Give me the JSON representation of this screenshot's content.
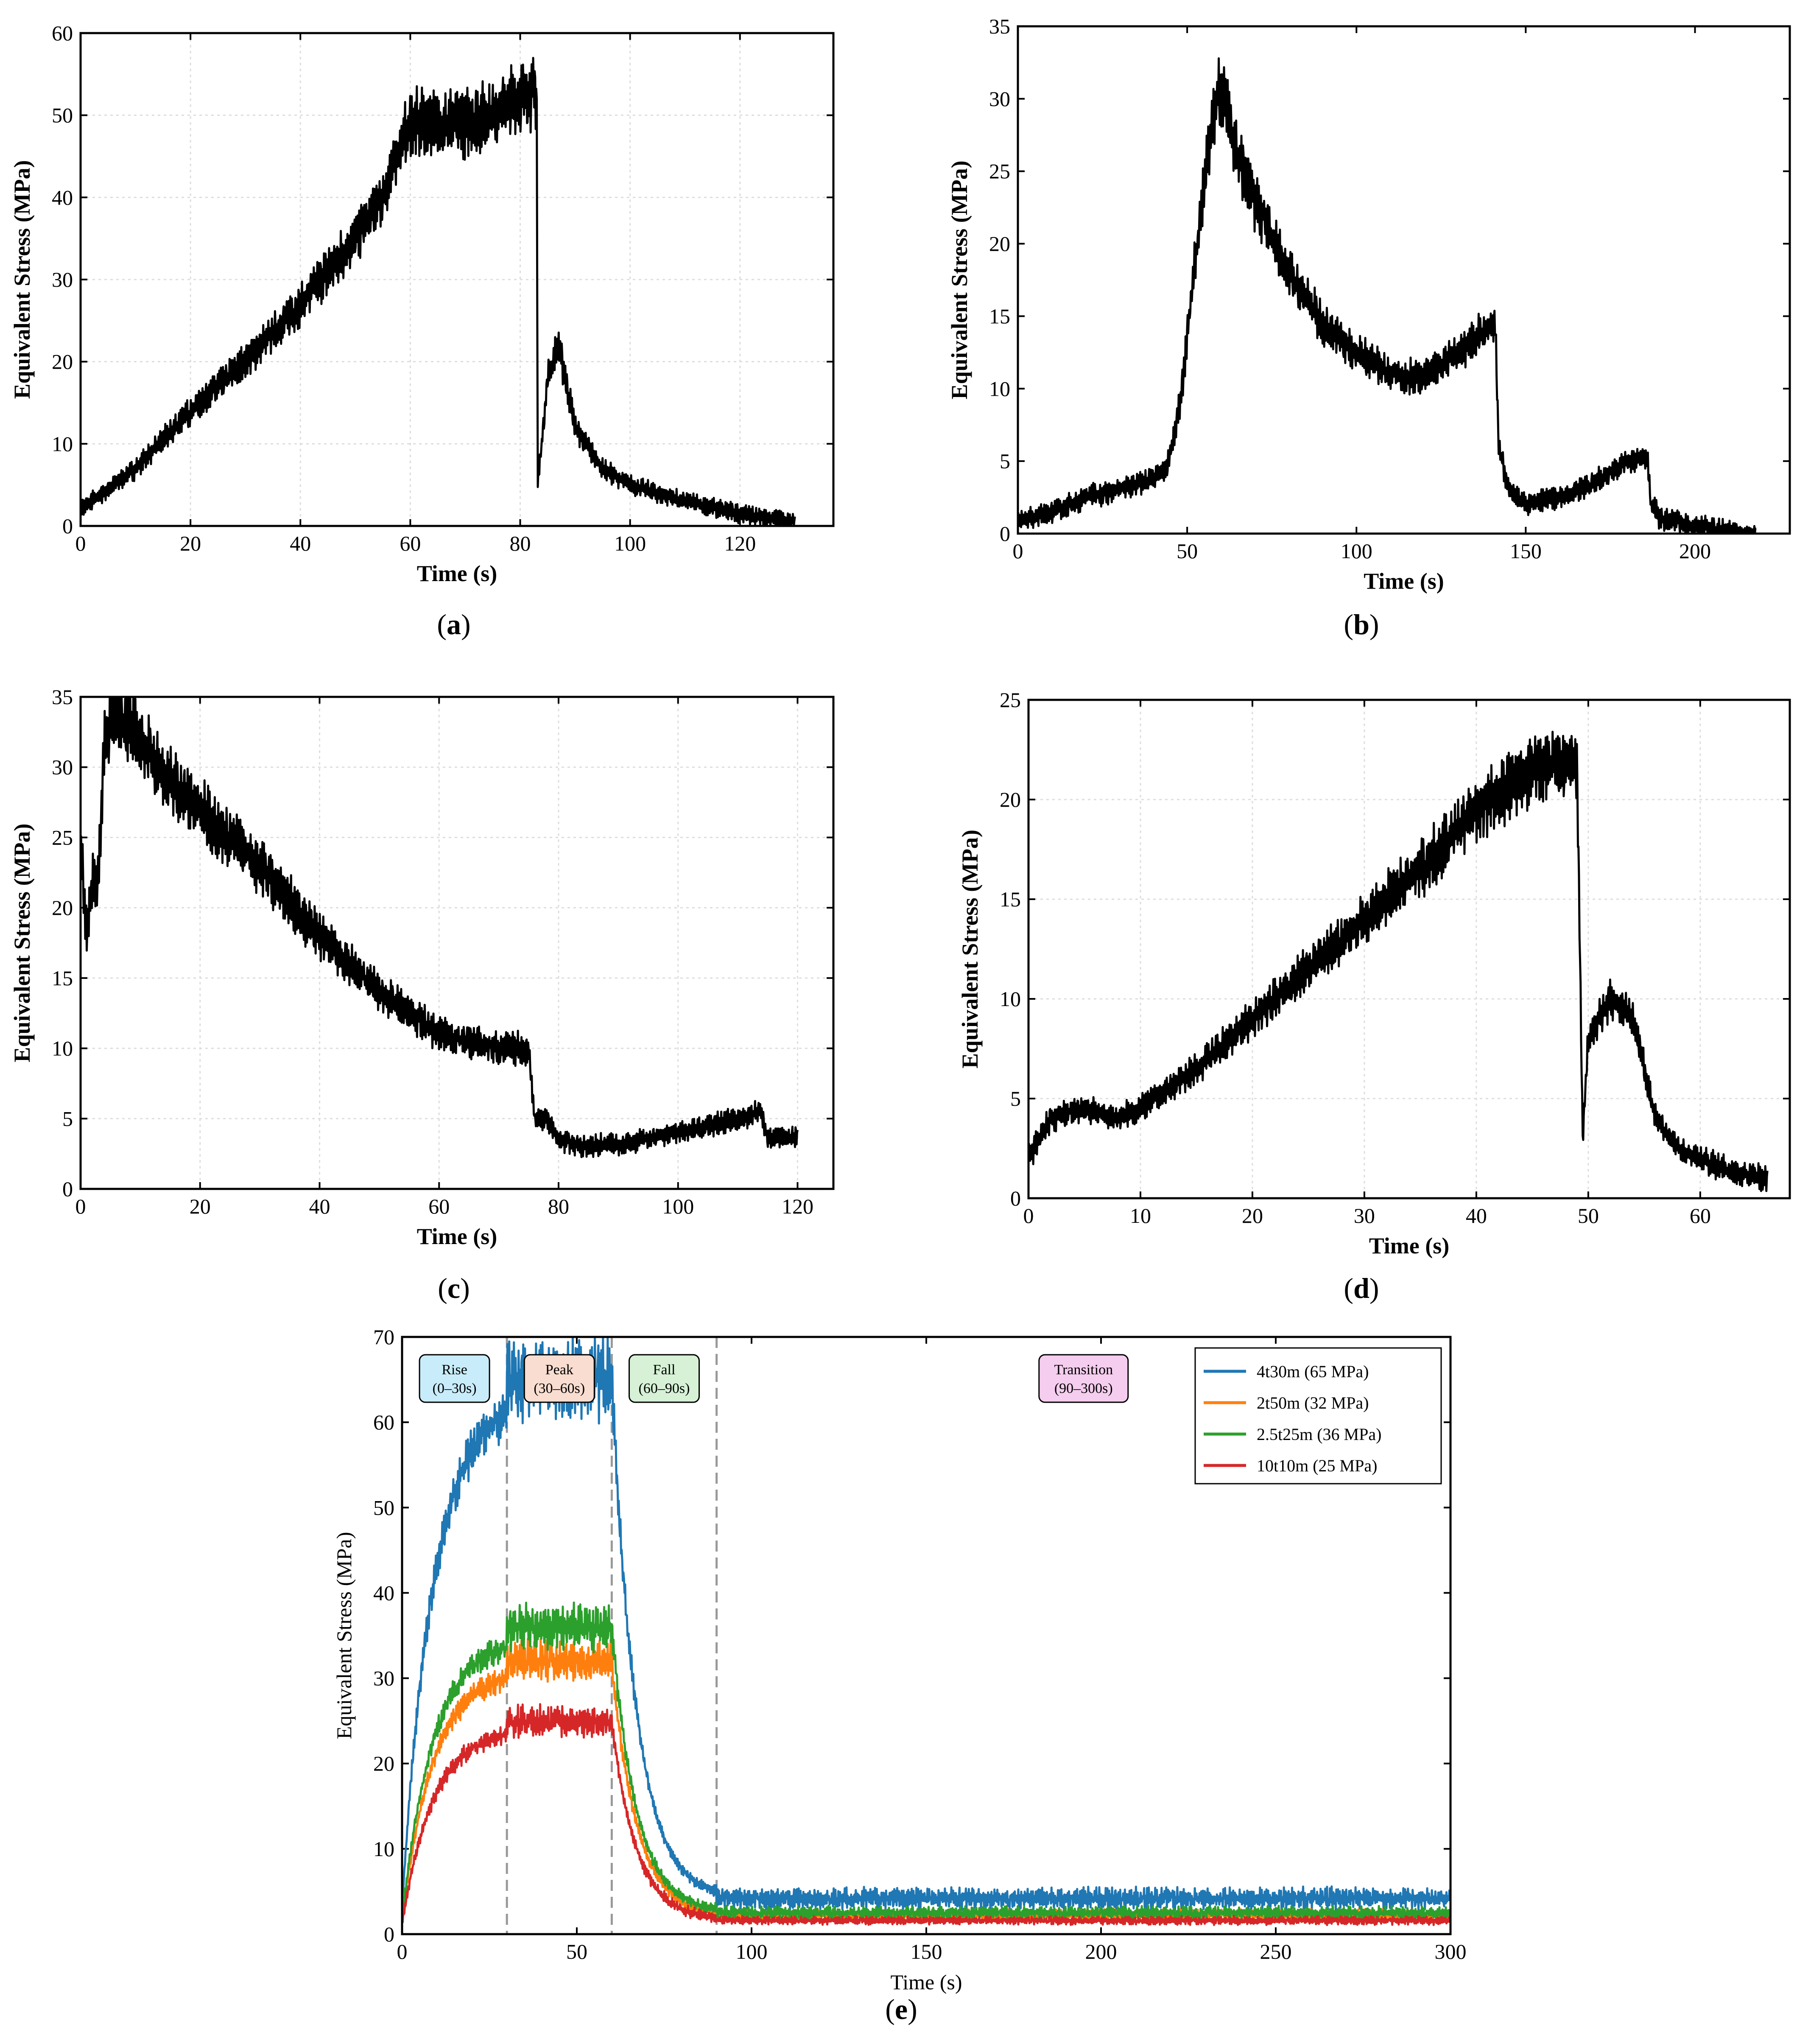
{
  "chart_data": [
    {
      "panel": "a",
      "caption_letter": "a",
      "type": "line",
      "xlabel": "Time (s)",
      "ylabel": "Equivalent Stress (MPa)",
      "xlim": [
        0,
        137
      ],
      "ylim": [
        0,
        60
      ],
      "xticks": [
        0,
        20,
        40,
        60,
        80,
        100,
        120
      ],
      "yticks": [
        0,
        10,
        20,
        30,
        40,
        50,
        60
      ],
      "grid": true,
      "line_color": "#000000",
      "series": [
        {
          "name": "stress",
          "x": [
            0,
            10,
            20,
            30,
            40,
            50,
            55,
            58,
            60,
            70,
            80,
            83,
            83.2,
            85,
            87,
            90,
            95,
            100,
            110,
            120,
            130
          ],
          "y": [
            2,
            7,
            14,
            20,
            27,
            35,
            40,
            46,
            49,
            49,
            52,
            53,
            5,
            18,
            22,
            12,
            7,
            5,
            3,
            1.5,
            0.5
          ]
        }
      ]
    },
    {
      "panel": "b",
      "caption_letter": "b",
      "type": "line",
      "xlabel": "Time (s)",
      "ylabel": "Equivalent Stress (MPa)",
      "xlim": [
        0,
        228
      ],
      "ylim": [
        0,
        35
      ],
      "xticks": [
        0,
        50,
        100,
        150,
        200
      ],
      "yticks": [
        0,
        5,
        10,
        15,
        20,
        25,
        30,
        35
      ],
      "grid": false,
      "line_color": "#000000",
      "series": [
        {
          "name": "stress",
          "x": [
            0,
            10,
            20,
            30,
            40,
            44,
            48,
            52,
            56,
            59,
            60,
            65,
            70,
            80,
            90,
            100,
            110,
            115,
            120,
            130,
            140,
            141,
            142,
            145,
            150,
            160,
            170,
            180,
            186,
            187,
            190,
            200,
            210,
            218
          ],
          "y": [
            1,
            1.5,
            2.5,
            3,
            3.8,
            4.5,
            9,
            18,
            26,
            30,
            31,
            26,
            23,
            18,
            14.5,
            12.5,
            11,
            10.8,
            11,
            12.5,
            14.4,
            14.3,
            6,
            3,
            2,
            2.5,
            3.5,
            5,
            5.2,
            2,
            1,
            0.5,
            0.2,
            0
          ]
        }
      ]
    },
    {
      "panel": "c",
      "caption_letter": "c",
      "type": "line",
      "xlabel": "Time (s)",
      "ylabel": "Equivalent Stress (MPa)",
      "xlim": [
        0,
        126
      ],
      "ylim": [
        0,
        35
      ],
      "xticks": [
        0,
        20,
        40,
        60,
        80,
        100,
        120
      ],
      "yticks": [
        0,
        5,
        10,
        15,
        20,
        25,
        30,
        35
      ],
      "grid": true,
      "line_color": "#000000",
      "series": [
        {
          "name": "stress",
          "x": [
            0,
            1,
            2,
            3,
            4,
            6,
            8,
            10,
            15,
            20,
            30,
            40,
            50,
            60,
            70,
            75,
            76,
            78,
            80,
            85,
            90,
            100,
            110,
            114,
            115,
            120
          ],
          "y": [
            25,
            18,
            22,
            22,
            32,
            34,
            33,
            32,
            29,
            27,
            23,
            18,
            14,
            11,
            10,
            10,
            5,
            5,
            3.5,
            3,
            3.2,
            4,
            5,
            5.5,
            3.5,
            3.7
          ]
        }
      ]
    },
    {
      "panel": "d",
      "caption_letter": "d",
      "type": "line",
      "xlabel": "Time (s)",
      "ylabel": "Equivalent Stress (MPa)",
      "xlim": [
        0,
        68
      ],
      "ylim": [
        0,
        25
      ],
      "xticks": [
        0,
        10,
        20,
        30,
        40,
        50,
        60
      ],
      "yticks": [
        0,
        5,
        10,
        15,
        20,
        25
      ],
      "grid": true,
      "line_color": "#000000",
      "series": [
        {
          "name": "stress",
          "x": [
            0,
            2,
            5,
            8,
            10,
            15,
            20,
            25,
            30,
            35,
            40,
            45,
            48,
            49,
            49.5,
            50,
            52,
            54,
            56,
            58,
            60,
            62,
            64,
            66
          ],
          "y": [
            2,
            4,
            4.5,
            4,
            4.5,
            6.5,
            9,
            11.5,
            14,
            16.5,
            19.5,
            21.5,
            21.8,
            21.5,
            3,
            8,
            10,
            9,
            4,
            2.5,
            2,
            1.5,
            1.2,
            1
          ]
        }
      ]
    },
    {
      "panel": "e",
      "caption_letter": "e",
      "type": "line",
      "xlabel": "Time (s)",
      "ylabel": "Equivalent Stress (MPa)",
      "xlim": [
        0,
        300
      ],
      "ylim": [
        0,
        70
      ],
      "xticks": [
        0,
        50,
        100,
        150,
        200,
        250,
        300
      ],
      "yticks": [
        0,
        10,
        20,
        30,
        40,
        50,
        60,
        70
      ],
      "grid": false,
      "vlines": [
        30,
        60,
        90
      ],
      "phases": [
        {
          "label": "Rise",
          "range": "(0–30s)",
          "x": 15,
          "color": "#c9ecfa"
        },
        {
          "label": "Peak",
          "range": "(30–60s)",
          "x": 45,
          "color": "#f8ddd0"
        },
        {
          "label": "Fall",
          "range": "(60–90s)",
          "x": 75,
          "color": "#d6f1d6"
        },
        {
          "label": "Transition",
          "range": "(90–300s)",
          "x": 195,
          "color": "#f5cdee"
        }
      ],
      "series": [
        {
          "name": "4t30m (65 MPa)",
          "color": "#1f77b4",
          "peak": 65,
          "end": 4.2
        },
        {
          "name": "2t50m (32 MPa)",
          "color": "#ff7f0e",
          "peak": 32,
          "end": 2.2
        },
        {
          "name": "2.5t25m (36 MPa)",
          "color": "#2ca02c",
          "peak": 36,
          "end": 2.5
        },
        {
          "name": "10t10m (25 MPa)",
          "color": "#d62728",
          "peak": 25,
          "end": 1.6
        }
      ]
    }
  ]
}
